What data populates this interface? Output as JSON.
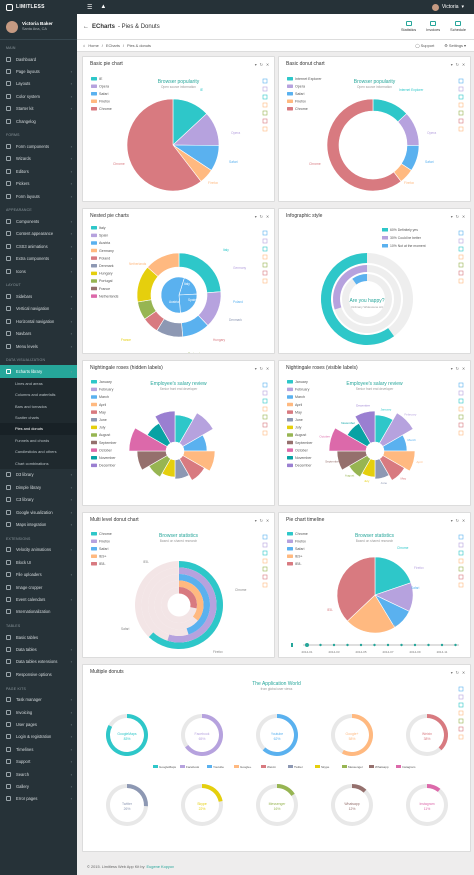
{
  "topbar": {
    "brand": "LIMITLESS",
    "user": "Victoria"
  },
  "sidebar": {
    "user_name": "Victoria Baker",
    "user_location": "Santa Ana, CA",
    "sections": [
      {
        "label": "MAIN",
        "items": [
          {
            "label": "Dashboard"
          },
          {
            "label": "Page layouts",
            "chev": true
          },
          {
            "label": "Layouts",
            "chev": true
          },
          {
            "label": "Color system",
            "chev": true
          },
          {
            "label": "Starter kit",
            "chev": true
          },
          {
            "label": "Changelog"
          }
        ]
      },
      {
        "label": "FORMS",
        "items": [
          {
            "label": "Form components",
            "chev": true
          },
          {
            "label": "Wizards",
            "chev": true
          },
          {
            "label": "Editors",
            "chev": true
          },
          {
            "label": "Pickers",
            "chev": true
          },
          {
            "label": "Form layouts",
            "chev": true
          }
        ]
      },
      {
        "label": "APPEARANCE",
        "items": [
          {
            "label": "Components",
            "chev": true
          },
          {
            "label": "Content appearance",
            "chev": true
          },
          {
            "label": "CSS3 animations",
            "chev": true
          },
          {
            "label": "Extra components",
            "chev": true
          },
          {
            "label": "Icons",
            "chev": true
          }
        ]
      },
      {
        "label": "LAYOUT",
        "items": [
          {
            "label": "Sidebars",
            "chev": true
          },
          {
            "label": "Vertical navigation",
            "chev": true
          },
          {
            "label": "Horizontal navigation",
            "chev": true
          },
          {
            "label": "Navbars",
            "chev": true
          },
          {
            "label": "Menu levels",
            "chev": true
          }
        ]
      },
      {
        "label": "DATA VISUALIZATION",
        "items": [
          {
            "label": "Echarts library",
            "chev": true,
            "active": true,
            "subs": [
              "Lines and areas",
              "Columns and waterfalls",
              "Bars and tornados",
              "Scatter charts",
              "Pies and donuts",
              "Funnels and chords",
              "Candlesticks and others",
              "Chart combinations"
            ],
            "current": 4
          },
          {
            "label": "D3 library",
            "chev": true
          },
          {
            "label": "Dimple library",
            "chev": true
          },
          {
            "label": "C3 library",
            "chev": true
          },
          {
            "label": "Google visualization",
            "chev": true
          },
          {
            "label": "Maps integration",
            "chev": true
          }
        ]
      },
      {
        "label": "EXTENSIONS",
        "items": [
          {
            "label": "Velocity animations",
            "chev": true
          },
          {
            "label": "Block UI"
          },
          {
            "label": "File uploaders",
            "chev": true
          },
          {
            "label": "Image cropper"
          },
          {
            "label": "Event calendars",
            "chev": true
          },
          {
            "label": "Internationalization"
          }
        ]
      },
      {
        "label": "TABLES",
        "items": [
          {
            "label": "Basic tables"
          },
          {
            "label": "Data tables",
            "chev": true
          },
          {
            "label": "Data tables extensions",
            "chev": true
          },
          {
            "label": "Responsive options"
          }
        ]
      },
      {
        "label": "PAGE KITS",
        "items": [
          {
            "label": "Task manager",
            "chev": true
          },
          {
            "label": "Invoicing",
            "chev": true
          },
          {
            "label": "User pages",
            "chev": true
          },
          {
            "label": "Login & registration",
            "chev": true
          },
          {
            "label": "Timelines",
            "chev": true
          },
          {
            "label": "Support",
            "chev": true
          },
          {
            "label": "Search",
            "chev": true
          },
          {
            "label": "Gallery",
            "chev": true
          },
          {
            "label": "Error pages",
            "chev": true
          }
        ]
      }
    ]
  },
  "header": {
    "title_bold": "ECharts",
    "title_rest": "- Pies & Donuts",
    "buttons": [
      {
        "label": "Statistics"
      },
      {
        "label": "Invoices"
      },
      {
        "label": "Schedule"
      }
    ]
  },
  "breadcrumb": {
    "home": "Home",
    "current": "ECharts",
    "page": "Pies & donuts",
    "support": "Support",
    "settings": "Settings"
  },
  "cards": [
    {
      "title": "Basic pie chart",
      "chart_title": "Browser popularity",
      "chart_sub": "Open source information",
      "legend": [
        "IE",
        "Opera",
        "Safari",
        "Firefox",
        "Chrome"
      ],
      "slices": [
        {
          "label": "IE",
          "value": 335,
          "color": "#2ec7c9"
        },
        {
          "label": "Opera",
          "value": 310,
          "color": "#b6a2de"
        },
        {
          "label": "Safari",
          "value": 234,
          "color": "#5ab1ef"
        },
        {
          "label": "Firefox",
          "value": 135,
          "color": "#ffb980"
        },
        {
          "label": "Chrome",
          "value": 1548,
          "color": "#d87a80"
        }
      ]
    },
    {
      "title": "Basic donut chart",
      "chart_title": "Browser popularity",
      "chart_sub": "Open source information",
      "legend": [
        "Internet Explorer",
        "Opera",
        "Safari",
        "Firefox",
        "Chrome"
      ],
      "slices": [
        {
          "label": "Internet Explorer",
          "value": 335,
          "color": "#2ec7c9"
        },
        {
          "label": "Opera",
          "value": 310,
          "color": "#b6a2de"
        },
        {
          "label": "Safari",
          "value": 234,
          "color": "#5ab1ef"
        },
        {
          "label": "Firefox",
          "value": 135,
          "color": "#ffb980"
        },
        {
          "label": "Chrome",
          "value": 1548,
          "color": "#d87a80"
        }
      ]
    },
    {
      "title": "Nested pie charts",
      "legend": [
        "Italy",
        "Spain",
        "Austria",
        "Germany",
        "Poland",
        "Denmark",
        "Hungary",
        "Portugal",
        "France",
        "Netherlands"
      ],
      "inner": [
        {
          "label": "Italy",
          "value": 535,
          "color": "#5ab1ef"
        },
        {
          "label": "Spain",
          "value": 679,
          "color": "#5ab1ef"
        },
        {
          "label": "Austria",
          "value": 1548,
          "color": "#5ab1ef"
        }
      ],
      "outer": [
        {
          "label": "Italy",
          "value": 335,
          "color": "#2ec7c9"
        },
        {
          "label": "Germany",
          "value": 200,
          "color": "#b6a2de"
        },
        {
          "label": "Poland",
          "value": 150,
          "color": "#5ab1ef"
        },
        {
          "label": "Denmark",
          "value": 145,
          "color": "#8d98b3"
        },
        {
          "label": "Hungary",
          "value": 90,
          "color": "#d87a80"
        },
        {
          "label": "Portugal",
          "value": 100,
          "color": "#97b552"
        },
        {
          "label": "France",
          "value": 200,
          "color": "#e5cf0d"
        },
        {
          "label": "Netherlands",
          "value": 190,
          "color": "#ffb980"
        }
      ]
    },
    {
      "title": "Infographic style",
      "legend": [
        "60% Definitely yes",
        "30% Could be better",
        "10% Not at the moment"
      ],
      "question": "Are you happy?",
      "q_sub": "Ordinary Widescene Art",
      "values": [
        60,
        30,
        10
      ]
    },
    {
      "title": "Nightingale roses (hidden labels)",
      "chart_title": "Employee's salary review",
      "chart_sub": "Senior front end developer",
      "legend": [
        "January",
        "February",
        "March",
        "April",
        "May",
        "June",
        "July",
        "August",
        "September",
        "October",
        "November",
        "December"
      ]
    },
    {
      "title": "Nightingale roses (visible labels)",
      "chart_title": "Employee's salary review",
      "chart_sub": "Senior front end developer",
      "legend": [
        "January",
        "February",
        "March",
        "April",
        "May",
        "June",
        "July",
        "August",
        "September",
        "October",
        "November",
        "December"
      ]
    },
    {
      "title": "Multi level donut chart",
      "chart_title": "Browser statistics",
      "chart_sub": "Based on shared research",
      "legend": [
        "Chrome",
        "Firefox",
        "Safari",
        "IE9+",
        "IE8-"
      ],
      "labels": [
        "IE8-",
        "Chrome",
        "Safari",
        "Firefox"
      ]
    },
    {
      "title": "Pie chart timeline",
      "chart_title": "Browser statistics",
      "chart_sub": "Based on shared research",
      "legend": [
        "Chrome",
        "Firefox",
        "Safari",
        "IE9+",
        "IE8-"
      ],
      "slices": [
        {
          "label": "Chrome",
          "value": 128,
          "color": "#2ec7c9"
        },
        {
          "label": "Firefox",
          "value": 80,
          "color": "#b6a2de"
        },
        {
          "label": "Safari",
          "value": 60,
          "color": "#5ab1ef"
        },
        {
          "label": "IE9+",
          "value": 140,
          "color": "#ffb980"
        },
        {
          "label": "IE8-",
          "value": 240,
          "color": "#d87a80"
        }
      ],
      "timeline": [
        "2014-01",
        "2014-03",
        "2014-05",
        "2014-07",
        "2014-09",
        "2014-11"
      ]
    },
    {
      "title": "Multiple donuts",
      "chart_title": "The Application World",
      "chart_sub": "from global user views",
      "legend": [
        "GoogleMaps",
        "Facebook",
        "Youtube",
        "Google+",
        "Weixin",
        "Twitter",
        "Skype",
        "Messenger",
        "Whatsapp",
        "Instagram"
      ],
      "donuts": [
        {
          "label": "GoogleMaps",
          "pct": "83%",
          "value": 83,
          "color": "#2ec7c9"
        },
        {
          "label": "Facebook",
          "pct": "65%",
          "value": 65,
          "color": "#b6a2de"
        },
        {
          "label": "Youtube",
          "pct": "62%",
          "value": 62,
          "color": "#5ab1ef"
        },
        {
          "label": "Google+",
          "pct": "58%",
          "value": 58,
          "color": "#ffb980"
        },
        {
          "label": "Weixin",
          "pct": "38%",
          "value": 38,
          "color": "#d87a80"
        },
        {
          "label": "Twitter",
          "pct": "26%",
          "value": 26,
          "color": "#8d98b3"
        },
        {
          "label": "Skype",
          "pct": "22%",
          "value": 22,
          "color": "#e5cf0d"
        },
        {
          "label": "Messenger",
          "pct": "16%",
          "value": 16,
          "color": "#97b552"
        },
        {
          "label": "Whatsapp",
          "pct": "12%",
          "value": 12,
          "color": "#95706d"
        },
        {
          "label": "Instagram",
          "pct": "11%",
          "value": 11,
          "color": "#dc69aa"
        }
      ]
    }
  ],
  "footer": {
    "text": "© 2015. Limitless Web App Kit by",
    "author": "Eugene Kopyov"
  }
}
